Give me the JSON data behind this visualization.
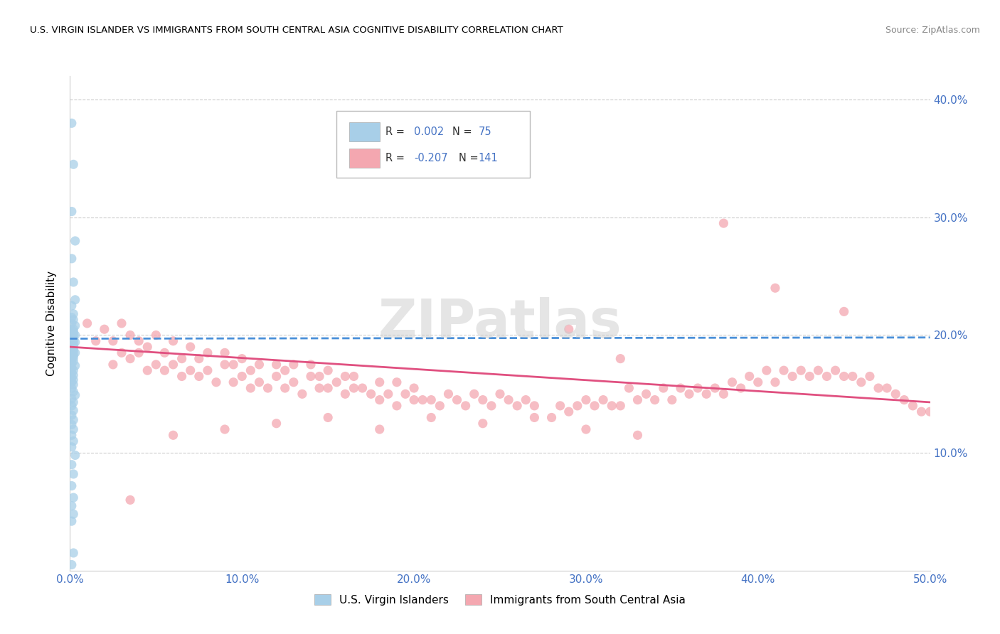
{
  "title": "U.S. VIRGIN ISLANDER VS IMMIGRANTS FROM SOUTH CENTRAL ASIA COGNITIVE DISABILITY CORRELATION CHART",
  "source": "Source: ZipAtlas.com",
  "ylabel": "Cognitive Disability",
  "xlim": [
    0.0,
    0.5
  ],
  "ylim": [
    0.0,
    0.42
  ],
  "yticks": [
    0.1,
    0.2,
    0.3,
    0.4
  ],
  "ytick_labels": [
    "10.0%",
    "20.0%",
    "30.0%",
    "40.0%"
  ],
  "xticks": [
    0.0,
    0.1,
    0.2,
    0.3,
    0.4,
    0.5
  ],
  "xtick_labels": [
    "0.0%",
    "10.0%",
    "20.0%",
    "30.0%",
    "40.0%",
    "50.0%"
  ],
  "blue_R": 0.002,
  "blue_N": 75,
  "pink_R": -0.207,
  "pink_N": 141,
  "blue_color": "#a8cfe8",
  "pink_color": "#f4a7b0",
  "blue_line_color": "#4a90d9",
  "pink_line_color": "#e05080",
  "legend_label_blue": "U.S. Virgin Islanders",
  "legend_label_pink": "Immigrants from South Central Asia",
  "blue_line_y0": 0.197,
  "blue_line_y1": 0.198,
  "pink_line_y0": 0.19,
  "pink_line_y1": 0.143,
  "blue_scatter_x": [
    0.001,
    0.002,
    0.001,
    0.003,
    0.001,
    0.002,
    0.003,
    0.001,
    0.002,
    0.001,
    0.002,
    0.001,
    0.003,
    0.002,
    0.001,
    0.002,
    0.001,
    0.002,
    0.001,
    0.003,
    0.002,
    0.001,
    0.002,
    0.001,
    0.002,
    0.003,
    0.001,
    0.002,
    0.001,
    0.002,
    0.001,
    0.002,
    0.001,
    0.002,
    0.003,
    0.001,
    0.002,
    0.001,
    0.002,
    0.001,
    0.002,
    0.001,
    0.003,
    0.001,
    0.002,
    0.001,
    0.002,
    0.001,
    0.002,
    0.001,
    0.002,
    0.001,
    0.002,
    0.003,
    0.001,
    0.002,
    0.001,
    0.002,
    0.001,
    0.002,
    0.001,
    0.002,
    0.001,
    0.002,
    0.001,
    0.003,
    0.001,
    0.002,
    0.001,
    0.002,
    0.001,
    0.002,
    0.001,
    0.002,
    0.001
  ],
  "blue_scatter_y": [
    0.38,
    0.345,
    0.305,
    0.28,
    0.265,
    0.245,
    0.23,
    0.225,
    0.218,
    0.215,
    0.213,
    0.21,
    0.208,
    0.205,
    0.204,
    0.203,
    0.202,
    0.201,
    0.2,
    0.2,
    0.199,
    0.198,
    0.197,
    0.196,
    0.195,
    0.194,
    0.193,
    0.192,
    0.191,
    0.19,
    0.189,
    0.188,
    0.187,
    0.186,
    0.185,
    0.184,
    0.183,
    0.182,
    0.181,
    0.18,
    0.178,
    0.176,
    0.174,
    0.172,
    0.17,
    0.168,
    0.166,
    0.164,
    0.162,
    0.16,
    0.158,
    0.155,
    0.152,
    0.149,
    0.146,
    0.143,
    0.14,
    0.136,
    0.132,
    0.128,
    0.124,
    0.12,
    0.115,
    0.11,
    0.105,
    0.098,
    0.09,
    0.082,
    0.072,
    0.062,
    0.055,
    0.048,
    0.042,
    0.015,
    0.005
  ],
  "pink_scatter_x": [
    0.01,
    0.015,
    0.02,
    0.025,
    0.025,
    0.03,
    0.03,
    0.035,
    0.035,
    0.04,
    0.04,
    0.045,
    0.045,
    0.05,
    0.05,
    0.055,
    0.055,
    0.06,
    0.06,
    0.065,
    0.065,
    0.07,
    0.07,
    0.075,
    0.075,
    0.08,
    0.08,
    0.085,
    0.09,
    0.09,
    0.095,
    0.095,
    0.1,
    0.1,
    0.105,
    0.105,
    0.11,
    0.11,
    0.115,
    0.12,
    0.12,
    0.125,
    0.125,
    0.13,
    0.13,
    0.135,
    0.14,
    0.14,
    0.145,
    0.145,
    0.15,
    0.15,
    0.155,
    0.16,
    0.16,
    0.165,
    0.165,
    0.17,
    0.175,
    0.18,
    0.18,
    0.185,
    0.19,
    0.19,
    0.195,
    0.2,
    0.2,
    0.205,
    0.21,
    0.215,
    0.22,
    0.225,
    0.23,
    0.235,
    0.24,
    0.245,
    0.25,
    0.255,
    0.26,
    0.265,
    0.27,
    0.28,
    0.285,
    0.29,
    0.295,
    0.3,
    0.305,
    0.31,
    0.315,
    0.32,
    0.325,
    0.33,
    0.335,
    0.34,
    0.345,
    0.35,
    0.355,
    0.36,
    0.365,
    0.37,
    0.375,
    0.38,
    0.385,
    0.39,
    0.395,
    0.4,
    0.405,
    0.41,
    0.415,
    0.42,
    0.425,
    0.43,
    0.435,
    0.44,
    0.445,
    0.45,
    0.455,
    0.46,
    0.465,
    0.47,
    0.475,
    0.48,
    0.485,
    0.49,
    0.495,
    0.5,
    0.32,
    0.29,
    0.38,
    0.41,
    0.45,
    0.035,
    0.06,
    0.09,
    0.12,
    0.15,
    0.18,
    0.21,
    0.24,
    0.27,
    0.3,
    0.33
  ],
  "pink_scatter_y": [
    0.21,
    0.195,
    0.205,
    0.175,
    0.195,
    0.185,
    0.21,
    0.18,
    0.2,
    0.185,
    0.195,
    0.17,
    0.19,
    0.175,
    0.2,
    0.17,
    0.185,
    0.175,
    0.195,
    0.165,
    0.18,
    0.17,
    0.19,
    0.165,
    0.18,
    0.17,
    0.185,
    0.16,
    0.175,
    0.185,
    0.16,
    0.175,
    0.165,
    0.18,
    0.155,
    0.17,
    0.16,
    0.175,
    0.155,
    0.165,
    0.175,
    0.155,
    0.17,
    0.16,
    0.175,
    0.15,
    0.165,
    0.175,
    0.155,
    0.165,
    0.155,
    0.17,
    0.16,
    0.15,
    0.165,
    0.155,
    0.165,
    0.155,
    0.15,
    0.145,
    0.16,
    0.15,
    0.14,
    0.16,
    0.15,
    0.145,
    0.155,
    0.145,
    0.145,
    0.14,
    0.15,
    0.145,
    0.14,
    0.15,
    0.145,
    0.14,
    0.15,
    0.145,
    0.14,
    0.145,
    0.14,
    0.13,
    0.14,
    0.135,
    0.14,
    0.145,
    0.14,
    0.145,
    0.14,
    0.14,
    0.155,
    0.145,
    0.15,
    0.145,
    0.155,
    0.145,
    0.155,
    0.15,
    0.155,
    0.15,
    0.155,
    0.15,
    0.16,
    0.155,
    0.165,
    0.16,
    0.17,
    0.16,
    0.17,
    0.165,
    0.17,
    0.165,
    0.17,
    0.165,
    0.17,
    0.165,
    0.165,
    0.16,
    0.165,
    0.155,
    0.155,
    0.15,
    0.145,
    0.14,
    0.135,
    0.135,
    0.18,
    0.205,
    0.295,
    0.24,
    0.22,
    0.06,
    0.115,
    0.12,
    0.125,
    0.13,
    0.12,
    0.13,
    0.125,
    0.13,
    0.12,
    0.115
  ]
}
